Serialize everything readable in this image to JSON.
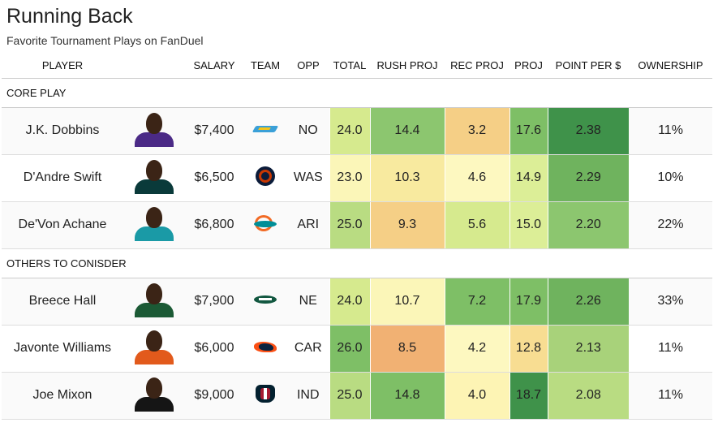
{
  "page": {
    "title": "Running Back",
    "subtitle": "Favorite Tournament Plays on FanDuel"
  },
  "columns": {
    "player": "PLAYER",
    "salary": "SALARY",
    "team": "TEAM",
    "opp": "OPP",
    "total": "TOTAL",
    "rush_proj": "RUSH PROJ",
    "rec_proj": "REC PROJ",
    "proj": "PROJ",
    "point_per_dollar": "POINT PER $",
    "ownership": "OWNERSHIP"
  },
  "sections": [
    {
      "label": "CORE PLAY",
      "rows": [
        {
          "player": "J.K. Dobbins",
          "salary": "$7,400",
          "team_logo": "chargers-logo-icon",
          "opp": "NO",
          "total": "24.0",
          "rush_proj": "14.4",
          "rec_proj": "3.2",
          "proj": "17.6",
          "ppd": "2.38",
          "ownership": "11%",
          "colors": {
            "total": "#d6ea8e",
            "rush_proj": "#8cc66f",
            "rec_proj": "#f5cf86",
            "proj": "#7ebf66",
            "ppd": "#3f924a",
            "jersey": "#4b2a86"
          }
        },
        {
          "player": "D'Andre Swift",
          "salary": "$6,500",
          "team_logo": "bears-logo-icon",
          "opp": "WAS",
          "total": "23.0",
          "rush_proj": "10.3",
          "rec_proj": "4.6",
          "proj": "14.9",
          "ppd": "2.29",
          "ownership": "10%",
          "colors": {
            "total": "#fbf6b8",
            "rush_proj": "#f8ea9f",
            "rec_proj": "#fdf8c0",
            "proj": "#dcee97",
            "ppd": "#6fb35e",
            "jersey": "#0a3a3a"
          }
        },
        {
          "player": "De'Von Achane",
          "salary": "$6,800",
          "team_logo": "dolphins-logo-icon",
          "opp": "ARI",
          "total": "25.0",
          "rush_proj": "9.3",
          "rec_proj": "5.6",
          "proj": "15.0",
          "ppd": "2.20",
          "ownership": "22%",
          "colors": {
            "total": "#b9dc82",
            "rush_proj": "#f5cf86",
            "rec_proj": "#d6ea8e",
            "proj": "#dcee97",
            "ppd": "#8cc66f",
            "jersey": "#1a9aa6"
          }
        }
      ]
    },
    {
      "label": "OTHERS TO CONISDER",
      "rows": [
        {
          "player": "Breece Hall",
          "salary": "$7,900",
          "team_logo": "jets-logo-icon",
          "opp": "NE",
          "total": "24.0",
          "rush_proj": "10.7",
          "rec_proj": "7.2",
          "proj": "17.9",
          "ppd": "2.26",
          "ownership": "33%",
          "colors": {
            "total": "#d6ea8e",
            "rush_proj": "#fbf6b8",
            "rec_proj": "#7ebf66",
            "proj": "#7ebf66",
            "ppd": "#6fb35e",
            "jersey": "#1b5a35"
          }
        },
        {
          "player": "Javonte Williams",
          "salary": "$6,000",
          "team_logo": "broncos-logo-icon",
          "opp": "CAR",
          "total": "26.0",
          "rush_proj": "8.5",
          "rec_proj": "4.2",
          "proj": "12.8",
          "ppd": "2.13",
          "ownership": "11%",
          "colors": {
            "total": "#7ebf66",
            "rush_proj": "#f1b173",
            "rec_proj": "#fdf8c0",
            "proj": "#f8dd92",
            "ppd": "#a8d27a",
            "jersey": "#e25a1c"
          }
        },
        {
          "player": "Joe Mixon",
          "salary": "$9,000",
          "team_logo": "texans-logo-icon",
          "opp": "IND",
          "total": "25.0",
          "rush_proj": "14.8",
          "rec_proj": "4.0",
          "proj": "18.7",
          "ppd": "2.08",
          "ownership": "11%",
          "colors": {
            "total": "#b9dc82",
            "rush_proj": "#7ebf66",
            "rec_proj": "#fdf4b4",
            "proj": "#3f924a",
            "ppd": "#b9dc82",
            "jersey": "#151515"
          }
        }
      ]
    }
  ]
}
